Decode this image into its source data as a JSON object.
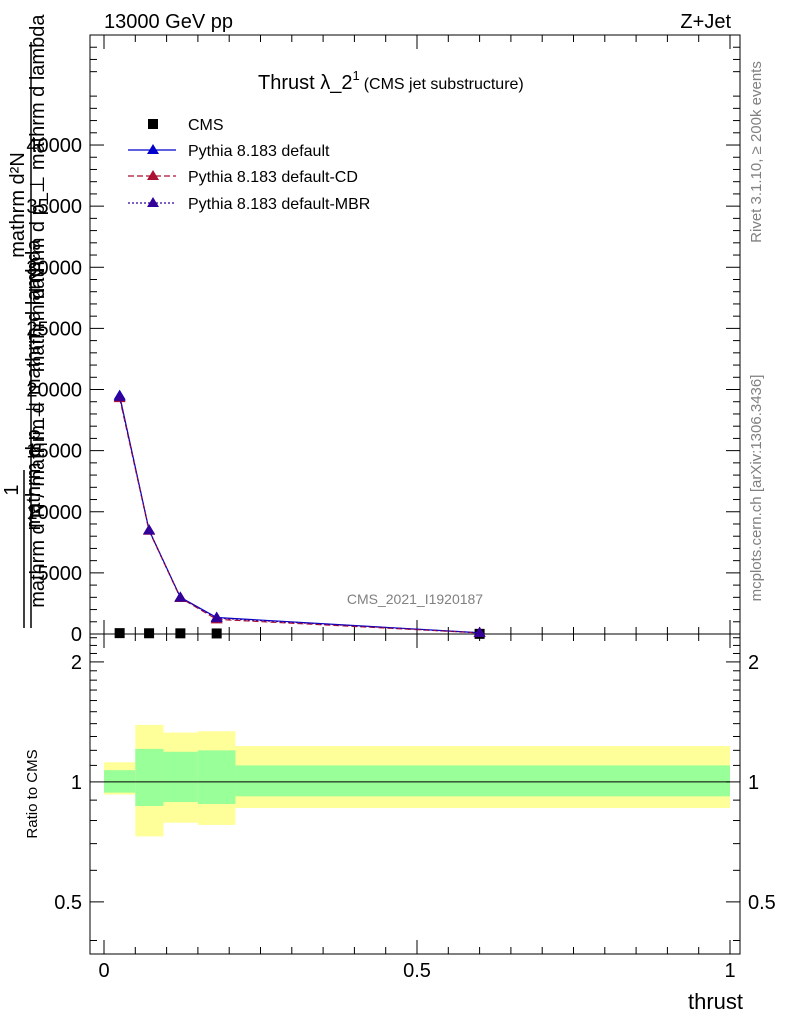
{
  "header": {
    "left": "13000 GeV pp",
    "right": "Z+Jet"
  },
  "side": {
    "rivet": "Rivet 3.1.10, ≥ 200k events",
    "mcplots": "mcplots.cern.ch [arXiv:1306.3436]"
  },
  "plot": {
    "title_main": "Thrust λ_2",
    "title_sup": "1",
    "title_note": "(CMS jet substructure)",
    "analysis": "CMS_2021_I1920187",
    "ylabel_num": "mathrm d²N",
    "ylabel_den": "mathrm d p_⊥ mathrm d lambda",
    "ylabel_overlap_1": "mathrm d N",
    "ylabel_overlap_2": "mathrm d p_⊥ mathrm d lambda",
    "ylabel_one": "1",
    "ylabel_prefix": "mathrm d N / mathrm d",
    "ratio_ylabel": "Ratio to CMS",
    "xlabel": "thrust"
  },
  "colors": {
    "data": "#000000",
    "default": "#0000cc",
    "cd": "#aa1133",
    "mbr": "#330099",
    "band_inner": "#99ff99",
    "band_outer": "#ffff99"
  },
  "chart_data": {
    "type": "line",
    "title": "Thrust λ_2^1 (CMS jet substructure)",
    "xlabel": "thrust",
    "xlim": [
      0,
      1
    ],
    "ylim": [
      0,
      49000
    ],
    "x_ticks": [
      "0",
      "0.5",
      "1"
    ],
    "x_tick_values": [
      0,
      0.5,
      1
    ],
    "y_ticks": [
      "0",
      "5000",
      "10000",
      "15000",
      "20000",
      "25000",
      "30000",
      "35000",
      "40000"
    ],
    "y_tick_values": [
      0,
      5000,
      10000,
      15000,
      20000,
      25000,
      30000,
      35000,
      40000
    ],
    "bins": [
      [
        0,
        0.05
      ],
      [
        0.05,
        0.095
      ],
      [
        0.095,
        0.15
      ],
      [
        0.15,
        0.21
      ],
      [
        0.21,
        1.0
      ]
    ],
    "legend": [
      {
        "label": "CMS",
        "style": "square"
      },
      {
        "label": "Pythia 8.183 default",
        "style": "solid"
      },
      {
        "label": "Pythia 8.183 default-CD",
        "style": "dashed"
      },
      {
        "label": "Pythia 8.183 default-MBR",
        "style": "dotted"
      }
    ],
    "series": [
      {
        "name": "CMS",
        "x": [
          0.025,
          0.072,
          0.122,
          0.18,
          0.6
        ],
        "values": [
          70,
          60,
          55,
          45,
          12
        ]
      },
      {
        "name": "Pythia 8.183 default",
        "x": [
          0.025,
          0.072,
          0.122,
          0.18,
          0.6
        ],
        "values": [
          19500,
          8500,
          3000,
          1350,
          100
        ],
        "errors": [
          300,
          150,
          80,
          40,
          5
        ]
      },
      {
        "name": "Pythia 8.183 default-CD",
        "x": [
          0.025,
          0.072,
          0.122,
          0.18,
          0.6
        ],
        "values": [
          19300,
          8450,
          2950,
          1200,
          90
        ]
      },
      {
        "name": "Pythia 8.183 default-MBR",
        "x": [
          0.025,
          0.072,
          0.122,
          0.18,
          0.6
        ],
        "values": [
          19400,
          8480,
          2980,
          1300,
          95
        ]
      }
    ],
    "ratio": {
      "ylabel": "Ratio to CMS",
      "ylim": [
        0.37,
        2.35
      ],
      "y_ticks": [
        "0.5",
        "1",
        "2"
      ],
      "y_tick_values": [
        0.5,
        1,
        2
      ],
      "band_inner": [
        [
          0.94,
          1.07
        ],
        [
          0.87,
          1.21
        ],
        [
          0.89,
          1.19
        ],
        [
          0.88,
          1.2
        ],
        [
          0.92,
          1.1
        ]
      ],
      "band_outer": [
        [
          0.93,
          1.12
        ],
        [
          0.73,
          1.39
        ],
        [
          0.79,
          1.33
        ],
        [
          0.78,
          1.34
        ],
        [
          0.86,
          1.23
        ]
      ]
    }
  }
}
